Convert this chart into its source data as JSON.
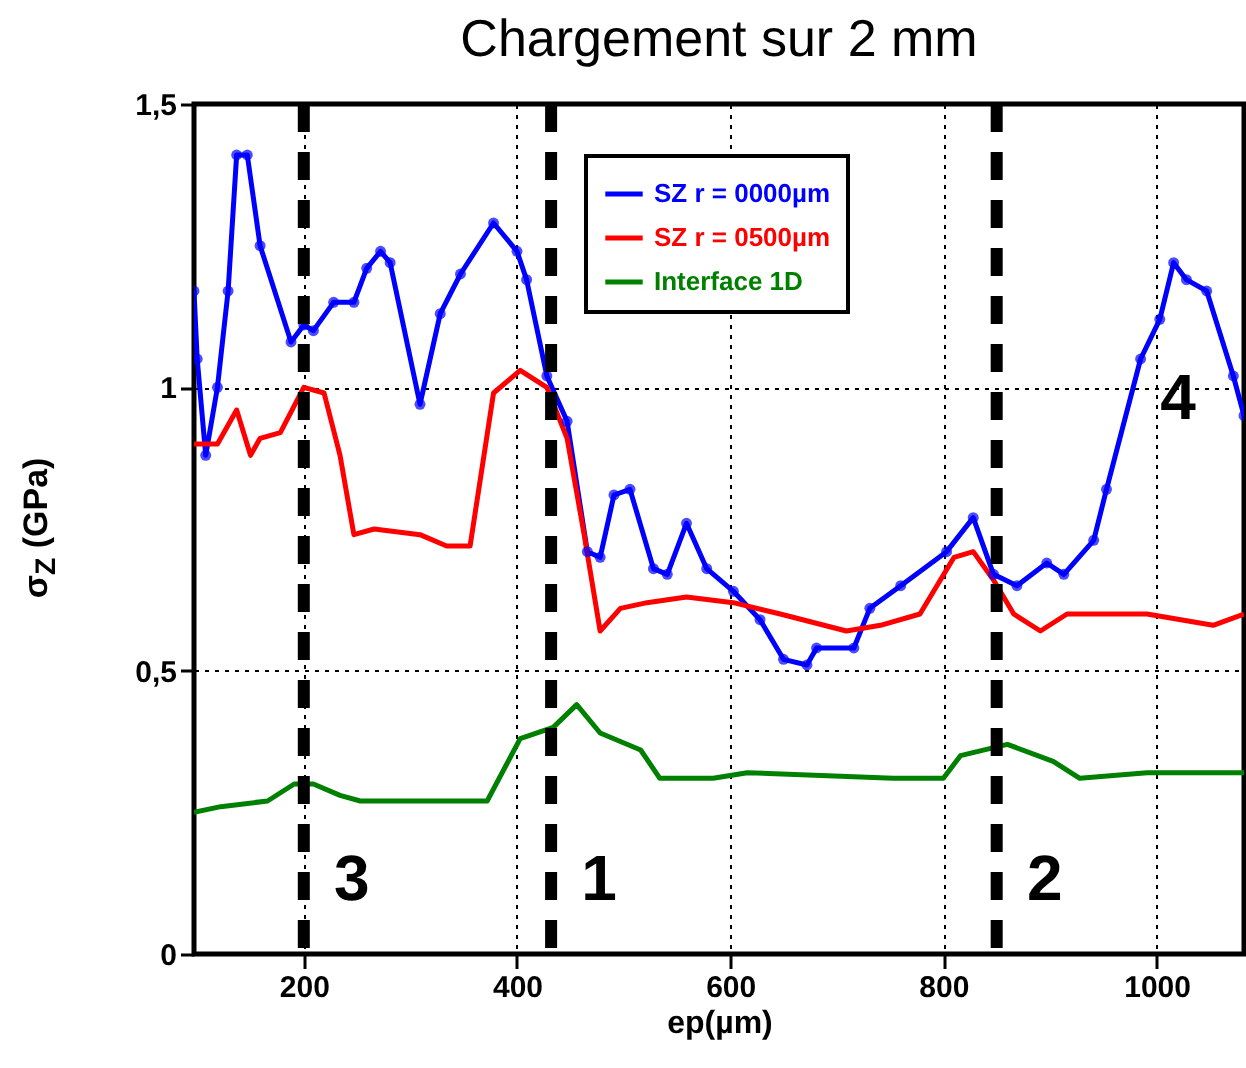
{
  "chart_data": {
    "type": "line",
    "title": "Chargement sur 2 mm",
    "xlabel": "ep(µm)",
    "ylabel": "σ$_{Z}$ (GPa)",
    "xlim": [
      97,
      1082
    ],
    "ylim": [
      0,
      1.5
    ],
    "xticks": [
      200,
      400,
      600,
      800,
      1000
    ],
    "yticks": [
      0,
      {
        "value": 0.5,
        "label": "0,5"
      },
      1,
      {
        "value": 1.5,
        "label": "1,5"
      }
    ],
    "grid": true,
    "legend": "top right",
    "series": [
      {
        "name": "SZ r = 0000µm",
        "color": "#0000ff",
        "marker": "circle",
        "x": [
          97,
          100,
          108,
          119,
          129,
          137,
          147,
          159,
          188,
          200,
          209,
          228,
          247,
          259,
          272,
          281,
          309,
          328,
          347,
          378,
          400,
          409,
          428,
          447,
          466,
          478,
          491,
          506,
          528,
          541,
          559,
          578,
          603,
          628,
          650,
          672,
          681,
          716,
          731,
          760,
          803,
          828,
          847,
          869,
          897,
          913,
          941,
          953,
          985,
          1003,
          1016,
          1028,
          1047,
          1072,
          1082
        ],
        "values": [
          1.17,
          1.05,
          0.88,
          1.0,
          1.17,
          1.41,
          1.41,
          1.25,
          1.08,
          1.11,
          1.1,
          1.15,
          1.15,
          1.21,
          1.24,
          1.22,
          0.97,
          1.13,
          1.2,
          1.29,
          1.24,
          1.19,
          1.02,
          0.94,
          0.71,
          0.7,
          0.81,
          0.82,
          0.68,
          0.67,
          0.76,
          0.68,
          0.64,
          0.59,
          0.52,
          0.51,
          0.54,
          0.54,
          0.61,
          0.65,
          0.71,
          0.77,
          0.67,
          0.65,
          0.69,
          0.67,
          0.73,
          0.82,
          1.05,
          1.12,
          1.22,
          1.19,
          1.17,
          1.02,
          0.95
        ]
      },
      {
        "name": "SZ r = 0500µm",
        "color": "#ff0000",
        "x": [
          97,
          119,
          137,
          150,
          159,
          178,
          200,
          219,
          234,
          247,
          266,
          309,
          334,
          356,
          378,
          403,
          428,
          447,
          463,
          478,
          497,
          522,
          559,
          603,
          647,
          709,
          741,
          778,
          810,
          828,
          847,
          866,
          891,
          916,
          991,
          1053,
          1082
        ],
        "values": [
          0.9,
          0.9,
          0.96,
          0.88,
          0.91,
          0.92,
          1.0,
          0.99,
          0.88,
          0.74,
          0.75,
          0.74,
          0.72,
          0.72,
          0.99,
          1.03,
          1.0,
          0.91,
          0.74,
          0.57,
          0.61,
          0.62,
          0.63,
          0.62,
          0.6,
          0.57,
          0.58,
          0.6,
          0.7,
          0.71,
          0.66,
          0.6,
          0.57,
          0.6,
          0.6,
          0.58,
          0.6
        ]
      },
      {
        "name": "Interface 1D",
        "color": "#008000",
        "x": [
          97,
          122,
          166,
          191,
          209,
          234,
          253,
          372,
          403,
          434,
          456,
          478,
          516,
          534,
          584,
          616,
          753,
          800,
          816,
          860,
          903,
          928,
          991,
          1082
        ],
        "values": [
          0.25,
          0.26,
          0.27,
          0.3,
          0.3,
          0.28,
          0.27,
          0.27,
          0.38,
          0.4,
          0.44,
          0.39,
          0.36,
          0.31,
          0.31,
          0.32,
          0.31,
          0.31,
          0.35,
          0.37,
          0.34,
          0.31,
          0.32,
          0.32
        ]
      }
    ],
    "ref_lines": [
      {
        "axis": "x",
        "value": 200,
        "color": "#000000",
        "line_style": "dashed"
      },
      {
        "axis": "x",
        "value": 432,
        "color": "#000000",
        "line_style": "dashed"
      },
      {
        "axis": "x",
        "value": 850,
        "color": "#000000",
        "line_style": "dashed"
      }
    ],
    "annotations": [
      {
        "text": "3",
        "x": 200,
        "y": 0.13
      },
      {
        "text": "1",
        "x": 432,
        "y": 0.13
      },
      {
        "text": "2",
        "x": 850,
        "y": 0.13
      },
      {
        "text": "4",
        "x": 975,
        "y": 0.98
      }
    ]
  }
}
